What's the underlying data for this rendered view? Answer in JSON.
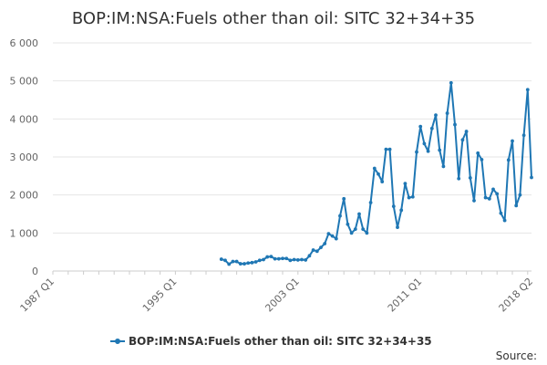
{
  "chart_data": {
    "type": "line",
    "title": "BOP:IM:NSA:Fuels other than oil: SITC 32+34+35",
    "xlabel": "",
    "ylabel": "",
    "x_range": [
      "1987 Q1",
      "2018 Q2"
    ],
    "x_tick_labels": [
      "1987 Q1",
      "1995 Q1",
      "2003 Q1",
      "2011 Q1",
      "2018 Q2"
    ],
    "ylim": [
      0,
      6000
    ],
    "y_ticks": [
      0,
      1000,
      2000,
      3000,
      4000,
      5000,
      6000
    ],
    "y_tick_labels": [
      "0",
      "1 000",
      "2 000",
      "3 000",
      "4 000",
      "5 000",
      "6 000"
    ],
    "grid": true,
    "legend_position": "bottom",
    "series_color": "#1f77b4",
    "series": [
      {
        "name": "BOP:IM:NSA:Fuels other than oil: SITC 32+34+35",
        "start_quarter": "1998 Q1",
        "values": [
          310,
          280,
          180,
          250,
          250,
          190,
          190,
          210,
          220,
          240,
          280,
          300,
          370,
          380,
          320,
          320,
          330,
          330,
          280,
          300,
          290,
          300,
          290,
          400,
          550,
          520,
          620,
          720,
          980,
          920,
          850,
          1450,
          1900,
          1230,
          1000,
          1100,
          1500,
          1100,
          1000,
          1800,
          2700,
          2550,
          2350,
          3200,
          3200,
          1700,
          1150,
          1600,
          2300,
          1930,
          1950,
          3130,
          3800,
          3350,
          3150,
          3750,
          4100,
          3180,
          2750,
          4150,
          4950,
          3850,
          2430,
          3450,
          3670,
          2450,
          1850,
          3100,
          2930,
          1930,
          1900,
          2150,
          2030,
          1520,
          1330,
          2920,
          3420,
          1720,
          2000,
          3570,
          4770,
          2460
        ]
      }
    ]
  },
  "legend": {
    "label": "BOP:IM:NSA:Fuels other than oil: SITC 32+34+35"
  },
  "source": {
    "label": "Source:"
  }
}
